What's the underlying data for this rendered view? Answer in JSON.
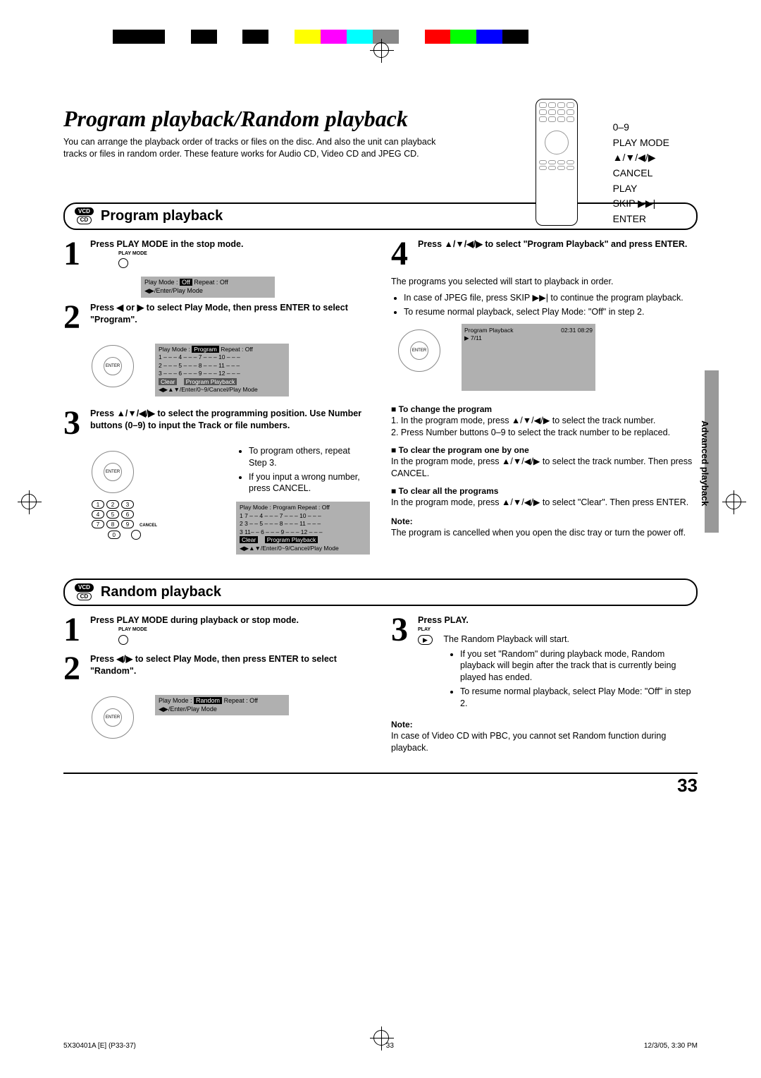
{
  "print": {
    "color_bar": [
      "#000000",
      "#000000",
      "#ffffff",
      "#000000",
      "#ffffff",
      "#000000",
      "#ffffff",
      "#ffff00",
      "#ff00ff",
      "#00ffff",
      "#888888",
      "#ffffff",
      "#ff0000",
      "#00ff00",
      "#0000ff",
      "#000000"
    ]
  },
  "header": {
    "title": "Program playback/Random playback",
    "intro": "You can arrange the playback order of tracks or files on the disc. And also the unit can playback tracks or files in random order. These feature works for Audio CD, Video CD and JPEG CD."
  },
  "remote": {
    "labels": [
      "0–9",
      "",
      "PLAY MODE",
      "▲/▼/◀/▶",
      "CANCEL",
      "PLAY",
      "SKIP ▶▶|",
      "ENTER"
    ]
  },
  "section1": {
    "badge": [
      "VCD",
      "CD"
    ],
    "title": "Program playback",
    "steps_left": [
      {
        "n": "1",
        "text": "Press PLAY MODE in the stop mode.",
        "label": "PLAY MODE"
      },
      {
        "n": "2",
        "text": "Press ◀ or ▶ to select Play Mode, then press ENTER to select \"Program\"."
      },
      {
        "n": "3",
        "text": "Press ▲/▼/◀/▶ to select the programming position. Use Number buttons (0–9) to input the Track or file numbers."
      }
    ],
    "step3_bullets": [
      "To program others, repeat Step 3.",
      "If you input a wrong number, press CANCEL."
    ],
    "osd1": {
      "line1": "Play Mode : ",
      "hl": "Off",
      "line1b": "   Repeat  :  Off",
      "line2": "◀▶/Enter/Play Mode"
    },
    "osd2": {
      "header": "Play Mode :  ",
      "hl": "Program",
      "headerb": "    Repeat  :  Off",
      "grid": [
        "1 – – –   4 – – –   7 – – –   10 – – –",
        "2 – – –   5 – – –   8 – – –   11 – – –",
        "3 – – –   6 – – –   9 – – –   12 – – –"
      ],
      "clear": "Clear",
      "pp": "Program Playback",
      "footer": "◀▶▲▼/Enter/0~9/Cancel/Play Mode"
    },
    "osd3": {
      "header": "Play Mode : Program    Repeat  :  Off",
      "grid": [
        "1  7 – –   4 – – –   7 – – –   10 – – –",
        "2  3 – –   5 – – –   8 – – –   11 – – –",
        "3 11– –   6 – – –   9 – – –   12 – – –"
      ],
      "clear": "Clear",
      "pp": "Program Playback",
      "footer": "◀▶▲▼/Enter/0~9/Cancel/Play Mode"
    },
    "numpad_cancel": "CANCEL",
    "steps_right": [
      {
        "n": "4",
        "text": "Press ▲/▼/◀/▶ to select \"Program Playback\" and press ENTER."
      }
    ],
    "right_body": "The programs you selected will start to playback in order.",
    "right_bullets": [
      "In case of JPEG file, press SKIP ▶▶| to continue the program playback.",
      "To resume normal playback, select Play Mode: \"Off\" in step 2."
    ],
    "screen": {
      "title": "Program Playback",
      "time": "02:31  08:29",
      "track": "▶ 7/11"
    },
    "change_title": "To change the program",
    "change_steps": [
      "1. In the program mode, press ▲/▼/◀/▶ to select the track number.",
      "2. Press Number buttons 0–9 to select the track number to be replaced."
    ],
    "clearone_title": "To clear the program one by one",
    "clearone_body": "In the program mode, press ▲/▼/◀/▶ to select the track number. Then press CANCEL.",
    "clearall_title": "To clear all the programs",
    "clearall_body": "In the program mode, press ▲/▼/◀/▶ to select \"Clear\". Then press ENTER.",
    "note_label": "Note:",
    "note_body": "The program is cancelled when you open the disc tray or turn the power off."
  },
  "section2": {
    "badge": [
      "VCD",
      "CD"
    ],
    "title": "Random playback",
    "steps_left": [
      {
        "n": "1",
        "text": "Press PLAY MODE during playback or stop mode.",
        "label": "PLAY MODE"
      },
      {
        "n": "2",
        "text": "Press ◀/▶ to select Play Mode, then press ENTER to select \"Random\"."
      }
    ],
    "osd": {
      "line1": "Play Mode :  ",
      "hl": "Random",
      "line1b": " Repeat  :  Off",
      "line2": "◀▶/Enter/Play Mode"
    },
    "steps_right": [
      {
        "n": "3",
        "text": "Press PLAY.",
        "label": "PLAY"
      }
    ],
    "right_body": "The Random Playback will start.",
    "right_bullets": [
      "If you set \"Random\" during playback mode, Random playback will begin after the track that is currently being played has ended.",
      "To resume normal playback, select Play Mode: \"Off\" in step 2."
    ],
    "note_label": "Note:",
    "note_body": "In case of Video CD with PBC, you cannot set Random function during playback."
  },
  "sidetab": "Advanced playback",
  "page_number": "33",
  "footer": {
    "left": "5X30401A [E] (P33-37)",
    "mid": "33",
    "right": "12/3/05, 3:30 PM"
  }
}
